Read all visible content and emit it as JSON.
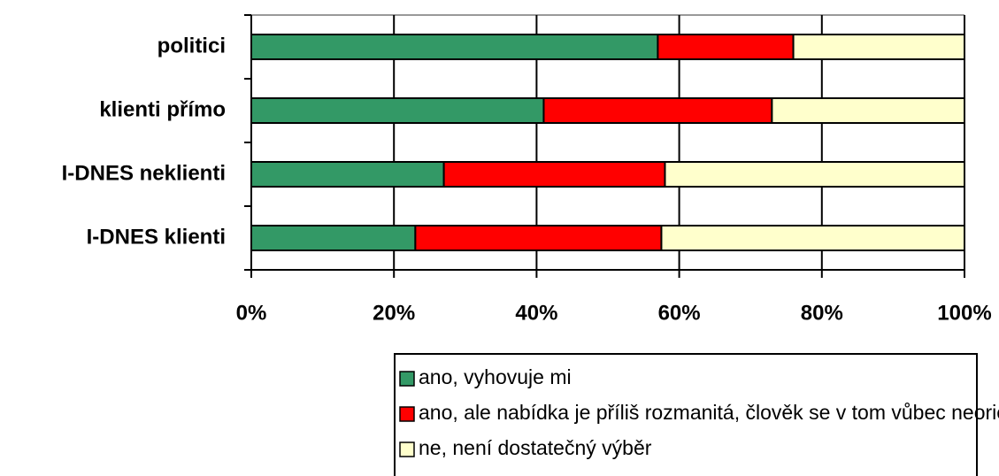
{
  "chart_data": {
    "type": "stacked_barh",
    "categories": [
      "politici",
      "klienti přímo",
      "I-DNES neklienti",
      "I-DNES klienti"
    ],
    "series": [
      {
        "name": "ano, vyhovuje mi",
        "color": "#339966",
        "values": [
          57,
          41,
          27,
          23
        ]
      },
      {
        "name": "ano, ale nabídka je příliš rozmanitá, člověk se v tom vůbec neorientuje",
        "color": "#ff0000",
        "values": [
          19,
          32,
          31,
          34.5
        ]
      },
      {
        "name": "ne, není dostatečný výběr",
        "color": "#ffffcc",
        "values": [
          24,
          27,
          42,
          42.5
        ]
      }
    ],
    "xlim": [
      0,
      100
    ],
    "xticks": [
      {
        "value": 0,
        "label": "0%"
      },
      {
        "value": 20,
        "label": "20%"
      },
      {
        "value": 40,
        "label": "40%"
      },
      {
        "value": 60,
        "label": "60%"
      },
      {
        "value": 80,
        "label": "80%"
      },
      {
        "value": 100,
        "label": "100%"
      }
    ],
    "grid": true,
    "legend": "bottom"
  }
}
